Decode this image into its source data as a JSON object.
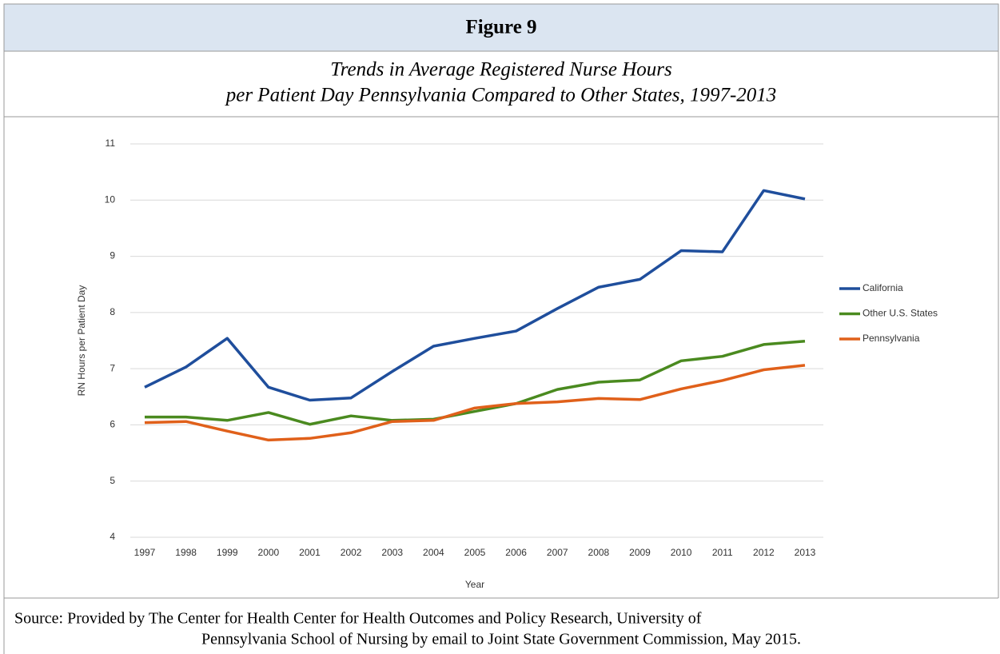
{
  "header": {
    "figure": "Figure 9",
    "caption": [
      "Trends in Average Registered Nurse Hours",
      "per Patient Day Pennsylvania Compared to Other States, 1997-2013"
    ]
  },
  "chart_data": {
    "type": "line",
    "x_label": "Year",
    "y_label": "RN Hours per Patient Day",
    "categories": [
      "1997",
      "1998",
      "1999",
      "2000",
      "2001",
      "2002",
      "2003",
      "2004",
      "2005",
      "2006",
      "2007",
      "2008",
      "2009",
      "2010",
      "2011",
      "2012",
      "2013"
    ],
    "series": [
      {
        "name": "California",
        "color": "#1f4e9c",
        "values": [
          6.67,
          7.03,
          7.54,
          6.67,
          6.44,
          6.48,
          6.95,
          7.4,
          7.54,
          7.67,
          8.07,
          8.45,
          8.59,
          9.1,
          9.08,
          10.17,
          10.02
        ]
      },
      {
        "name": "Other U.S. States",
        "color": "#4a8a1f",
        "values": [
          6.14,
          6.14,
          6.08,
          6.22,
          6.01,
          6.16,
          6.08,
          6.1,
          6.24,
          6.38,
          6.63,
          6.76,
          6.8,
          7.14,
          7.22,
          7.43,
          7.49
        ]
      },
      {
        "name": "Pennsylvania",
        "color": "#e0601a",
        "values": [
          6.04,
          6.06,
          5.89,
          5.73,
          5.76,
          5.86,
          6.06,
          6.08,
          6.3,
          6.38,
          6.41,
          6.47,
          6.45,
          6.64,
          6.79,
          6.98,
          7.06
        ]
      }
    ],
    "ylim": [
      4,
      11
    ],
    "yticks": [
      4,
      5,
      6,
      7,
      8,
      9,
      10,
      11
    ],
    "grid": true,
    "legend": "right"
  },
  "source": [
    "Source: Provided by The Center for Health Center for Health Outcomes and Policy Research, University of",
    "Pennsylvania School of Nursing by email to Joint State Government Commission, May 2015."
  ]
}
